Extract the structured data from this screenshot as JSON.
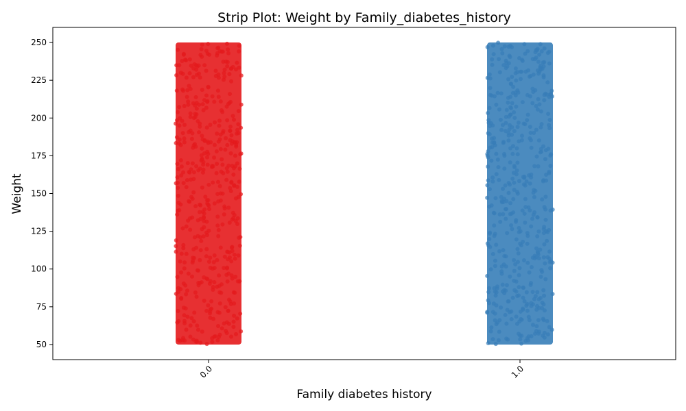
{
  "chart_data": {
    "type": "scatter",
    "subtype": "strip",
    "title": "Strip Plot: Weight by Family_diabetes_history",
    "xlabel": "Family diabetes history",
    "ylabel": "Weight",
    "categories": [
      "0.0",
      "1.0"
    ],
    "ylim": [
      40,
      260
    ],
    "yticks": [
      50,
      75,
      100,
      125,
      150,
      175,
      200,
      225,
      250
    ],
    "grid": false,
    "series": [
      {
        "category": "0.0",
        "color": "#e41a1c",
        "y_min": 50,
        "y_max": 250
      },
      {
        "category": "1.0",
        "color": "#377eb8",
        "y_min": 50,
        "y_max": 250
      }
    ]
  }
}
